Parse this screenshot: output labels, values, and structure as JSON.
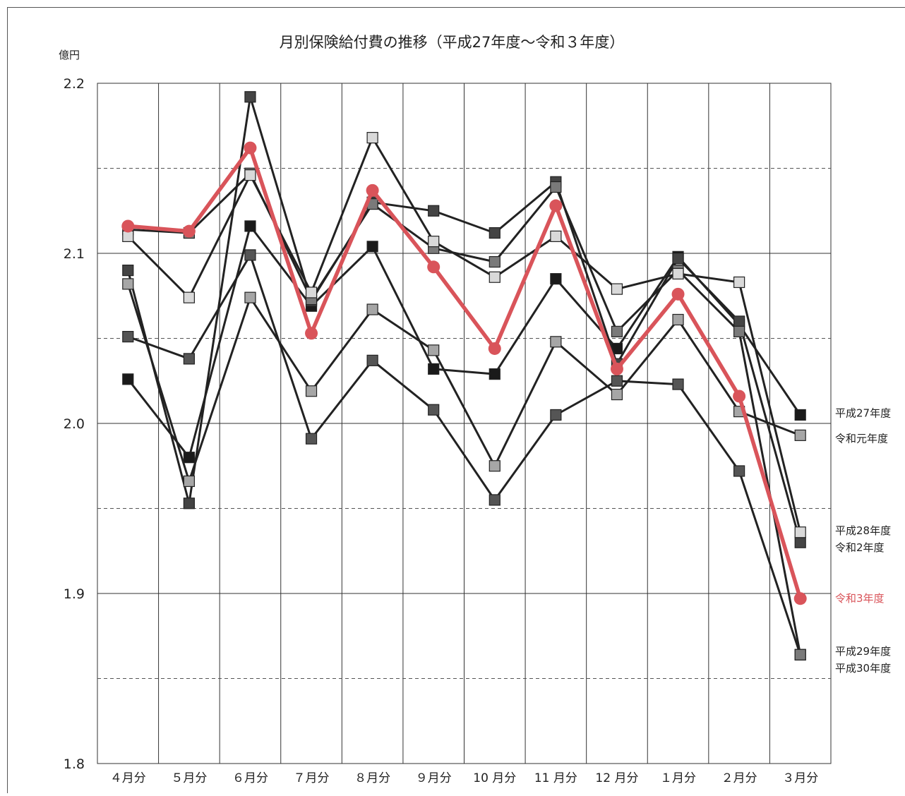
{
  "chart_data": {
    "type": "line",
    "title": "月別保険給付費の推移（平成27年度～令和３年度）",
    "xlabel": "",
    "ylabel": "億円",
    "ylim": [
      1.8,
      2.2
    ],
    "yticks": [
      "2.2",
      "2.1",
      "2.0",
      "1.9",
      "1.8"
    ],
    "ytick_values": [
      2.2,
      2.1,
      2.0,
      1.9,
      1.8
    ],
    "minor_gridlines": [
      2.15,
      2.05,
      1.95,
      1.85
    ],
    "categories": [
      "４月分",
      "５月分",
      "６月分",
      "７月分",
      "８月分",
      "９月分",
      "10 月分",
      "11 月分",
      "12 月分",
      "１月分",
      "２月分",
      "３月分"
    ],
    "grid": true,
    "legend": "right-end labels",
    "series": [
      {
        "name": "",
        "color": "#1a1a1a",
        "marker": "square",
        "values": [
          2.026,
          1.98,
          2.116,
          2.069,
          2.104,
          2.032,
          2.029,
          2.085,
          2.044,
          2.098,
          2.058,
          2.005
        ]
      },
      {
        "name": "",
        "color": "#444444",
        "marker": "square",
        "values": [
          2.09,
          1.953,
          2.192,
          2.072,
          2.13,
          2.125,
          2.112,
          2.142,
          2.035,
          2.097,
          2.06,
          1.93
        ]
      },
      {
        "name": "",
        "color": "#555555",
        "marker": "square",
        "values": [
          2.051,
          2.038,
          2.099,
          1.991,
          2.037,
          2.008,
          1.955,
          2.005,
          2.025,
          2.023,
          1.972,
          1.864
        ]
      },
      {
        "name": "",
        "color": "#7a7a7a",
        "marker": "square",
        "values": [
          2.114,
          2.112,
          2.147,
          2.073,
          2.129,
          2.103,
          2.095,
          2.139,
          2.054,
          2.09,
          2.054,
          1.864
        ]
      },
      {
        "name": "",
        "color": "#a6a6a6",
        "marker": "square",
        "values": [
          2.082,
          1.966,
          2.074,
          2.019,
          2.067,
          2.043,
          1.975,
          2.048,
          2.017,
          2.061,
          2.007,
          1.993
        ]
      },
      {
        "name": "",
        "color": "#d9d9d9",
        "marker": "square",
        "values": [
          2.11,
          2.074,
          2.146,
          2.077,
          2.168,
          2.107,
          2.086,
          2.11,
          2.079,
          2.088,
          2.083,
          1.936
        ]
      },
      {
        "name": "令和3年度",
        "color": "#d9545a",
        "marker": "circle",
        "highlight": true,
        "values": [
          2.116,
          2.113,
          2.162,
          2.053,
          2.137,
          2.092,
          2.044,
          2.128,
          2.032,
          2.076,
          2.016,
          1.897
        ]
      }
    ],
    "end_labels": [
      {
        "text": "平成27年度",
        "value": 2.006
      },
      {
        "text": "令和元年度",
        "value": 1.991
      },
      {
        "text": "平成28年度",
        "value": 1.937
      },
      {
        "text": "令和2年度",
        "value": 1.927
      },
      {
        "text": "令和3年度",
        "value": 1.897,
        "color": "#d9545a"
      },
      {
        "text": "平成29年度",
        "value": 1.866
      },
      {
        "text": "平成30年度",
        "value": 1.856
      }
    ]
  }
}
